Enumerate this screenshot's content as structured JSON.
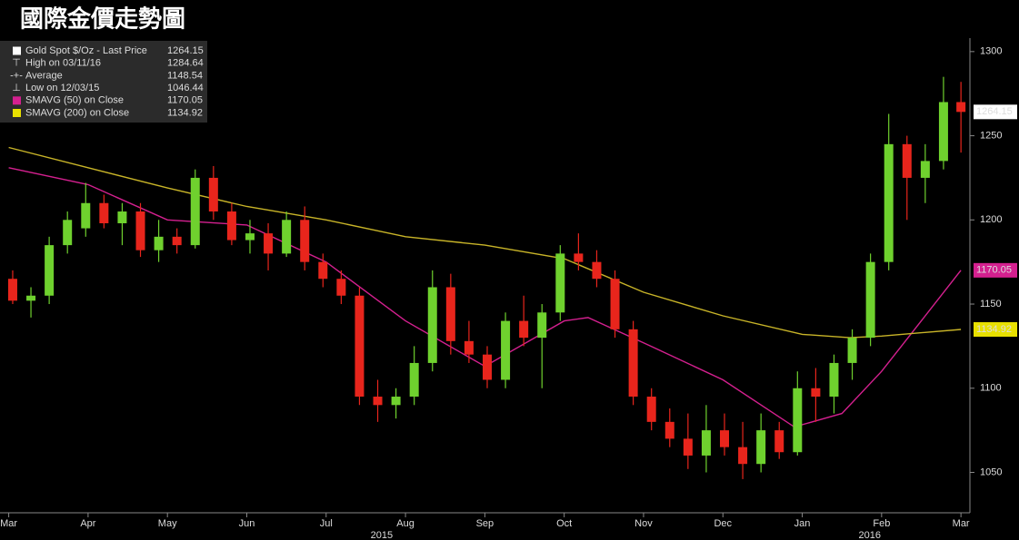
{
  "chart_data": {
    "type": "candlestick",
    "title": "國際金價走勢圖",
    "legend": [
      {
        "label": "Gold Spot $/Oz - Last Price",
        "value": 1264.15,
        "color": "#ffffff"
      },
      {
        "label": "High on 03/11/16",
        "value": 1284.64
      },
      {
        "label": "Average",
        "value": 1148.54
      },
      {
        "label": "Low on 12/03/15",
        "value": 1046.44
      },
      {
        "label": "SMAVG (50) on Close",
        "value": 1170.05,
        "color": "#d4208f"
      },
      {
        "label": "SMAVG (200) on Close",
        "value": 1134.92,
        "color": "#e8e000"
      }
    ],
    "x": [
      0.05,
      0.28,
      0.51,
      0.74,
      0.97,
      1.2,
      1.43,
      1.66,
      1.89,
      2.12,
      2.35,
      2.58,
      2.81,
      3.04,
      3.27,
      3.5,
      3.73,
      3.96,
      4.19,
      4.42,
      4.65,
      4.88,
      5.11,
      5.34,
      5.57,
      5.8,
      6.03,
      6.26,
      6.49,
      6.72,
      6.95,
      7.18,
      7.41,
      7.64,
      7.87,
      8.1,
      8.33,
      8.56,
      8.79,
      9.02,
      9.25,
      9.48,
      9.71,
      9.94,
      10.17,
      10.4,
      10.63,
      10.86,
      11.09,
      11.32,
      11.55,
      11.78,
      12.0
    ],
    "ohlc": [
      [
        1165,
        1170,
        1150,
        1152
      ],
      [
        1152,
        1160,
        1142,
        1155
      ],
      [
        1155,
        1190,
        1150,
        1185
      ],
      [
        1185,
        1205,
        1180,
        1200
      ],
      [
        1195,
        1222,
        1190,
        1210
      ],
      [
        1210,
        1215,
        1195,
        1198
      ],
      [
        1198,
        1210,
        1185,
        1205
      ],
      [
        1205,
        1210,
        1178,
        1182
      ],
      [
        1182,
        1200,
        1175,
        1190
      ],
      [
        1190,
        1195,
        1180,
        1185
      ],
      [
        1185,
        1230,
        1183,
        1225
      ],
      [
        1225,
        1232,
        1200,
        1205
      ],
      [
        1205,
        1210,
        1185,
        1188
      ],
      [
        1188,
        1200,
        1180,
        1192
      ],
      [
        1192,
        1198,
        1170,
        1180
      ],
      [
        1180,
        1205,
        1178,
        1200
      ],
      [
        1200,
        1208,
        1170,
        1175
      ],
      [
        1175,
        1180,
        1160,
        1165
      ],
      [
        1165,
        1170,
        1150,
        1155
      ],
      [
        1155,
        1160,
        1090,
        1095
      ],
      [
        1095,
        1105,
        1080,
        1090
      ],
      [
        1090,
        1100,
        1082,
        1095
      ],
      [
        1095,
        1125,
        1090,
        1115
      ],
      [
        1115,
        1170,
        1110,
        1160
      ],
      [
        1160,
        1168,
        1120,
        1128
      ],
      [
        1128,
        1140,
        1115,
        1120
      ],
      [
        1120,
        1125,
        1100,
        1105
      ],
      [
        1105,
        1145,
        1100,
        1140
      ],
      [
        1140,
        1155,
        1125,
        1130
      ],
      [
        1130,
        1150,
        1100,
        1145
      ],
      [
        1145,
        1185,
        1140,
        1180
      ],
      [
        1180,
        1192,
        1170,
        1175
      ],
      [
        1175,
        1182,
        1160,
        1165
      ],
      [
        1165,
        1170,
        1130,
        1135
      ],
      [
        1135,
        1140,
        1090,
        1095
      ],
      [
        1095,
        1100,
        1075,
        1080
      ],
      [
        1080,
        1088,
        1065,
        1070
      ],
      [
        1070,
        1085,
        1052,
        1060
      ],
      [
        1060,
        1090,
        1050,
        1075
      ],
      [
        1075,
        1085,
        1060,
        1065
      ],
      [
        1065,
        1080,
        1046,
        1055
      ],
      [
        1055,
        1085,
        1050,
        1075
      ],
      [
        1075,
        1080,
        1058,
        1062
      ],
      [
        1062,
        1110,
        1060,
        1100
      ],
      [
        1100,
        1112,
        1080,
        1095
      ],
      [
        1095,
        1120,
        1085,
        1115
      ],
      [
        1115,
        1135,
        1105,
        1130
      ],
      [
        1130,
        1180,
        1125,
        1175
      ],
      [
        1175,
        1263,
        1170,
        1245
      ],
      [
        1245,
        1250,
        1200,
        1225
      ],
      [
        1225,
        1245,
        1210,
        1235
      ],
      [
        1235,
        1285,
        1230,
        1270
      ],
      [
        1270,
        1282,
        1240,
        1264.15
      ]
    ],
    "up_color": "#6fd12e",
    "down_color": "#e8251c",
    "lines": [
      {
        "name": "SMAVG (50) on Close",
        "color": "#d4208f",
        "x": [
          0,
          1,
          2,
          3,
          4,
          5,
          6,
          7,
          7.3,
          8,
          9,
          9.9,
          10.5,
          11,
          11.5,
          12
        ],
        "values": [
          1231,
          1221,
          1200,
          1197,
          1175,
          1140,
          1113,
          1140,
          1142,
          1127,
          1105,
          1077,
          1085,
          1110,
          1140,
          1170.05
        ]
      },
      {
        "name": "SMAVG (200) on Close",
        "color": "#c8b428",
        "x": [
          0,
          1,
          2,
          3,
          4,
          5,
          6,
          7,
          8,
          9,
          10,
          10.6,
          11,
          12
        ],
        "values": [
          1243,
          1231,
          1219,
          1208,
          1200,
          1190,
          1185,
          1177,
          1157,
          1143,
          1132,
          1130,
          1131,
          1134.92
        ]
      }
    ],
    "xlim": [
      -0.11,
      12.09
    ],
    "xticks": [
      {
        "value": 0,
        "label": "Mar"
      },
      {
        "value": 1,
        "label": "Apr"
      },
      {
        "value": 2,
        "label": "May"
      },
      {
        "value": 3,
        "label": "Jun"
      },
      {
        "value": 4,
        "label": "Jul"
      },
      {
        "value": 5,
        "label": "Aug"
      },
      {
        "value": 6,
        "label": "Sep"
      },
      {
        "value": 7,
        "label": "Oct"
      },
      {
        "value": 8,
        "label": "Nov"
      },
      {
        "value": 9,
        "label": "Dec"
      },
      {
        "value": 10,
        "label": "Jan"
      },
      {
        "value": 11,
        "label": "Feb"
      },
      {
        "value": 12,
        "label": "Mar"
      }
    ],
    "year_labels": [
      {
        "value": 4.7,
        "label": "2015"
      },
      {
        "value": 10.85,
        "label": "2016"
      }
    ],
    "ylim": [
      1026,
      1308
    ],
    "yticks": [
      1050,
      1100,
      1150,
      1200,
      1250,
      1300
    ],
    "y_axis_side": "right"
  }
}
